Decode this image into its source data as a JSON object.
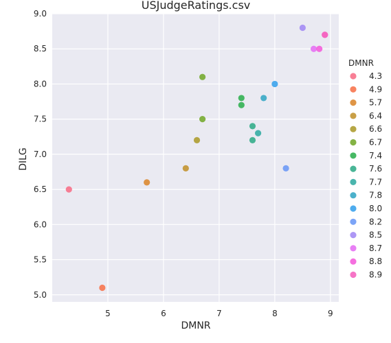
{
  "chart_data": {
    "type": "scatter",
    "title": "USJudgeRatings.csv",
    "xlabel": "DMNR",
    "ylabel": "DILG",
    "xlim": [
      4.0,
      9.15
    ],
    "ylim": [
      4.9,
      9.0
    ],
    "xticks": [
      5,
      6,
      7,
      8,
      9
    ],
    "yticks": [
      5.0,
      5.5,
      6.0,
      6.5,
      7.0,
      7.5,
      8.0,
      8.5,
      9.0
    ],
    "grid": true,
    "legend_position": "right",
    "legend_title": "DMNR",
    "series": [
      {
        "name": "4.3",
        "color": "#f77189",
        "points": [
          [
            4.3,
            6.5
          ]
        ]
      },
      {
        "name": "4.9",
        "color": "#f7754f",
        "points": [
          [
            4.9,
            5.1
          ]
        ]
      },
      {
        "name": "5.7",
        "color": "#dc8932",
        "points": [
          [
            5.7,
            6.6
          ]
        ]
      },
      {
        "name": "6.4",
        "color": "#c39532",
        "points": [
          [
            6.4,
            6.8
          ]
        ]
      },
      {
        "name": "6.6",
        "color": "#ae9d31",
        "points": [
          [
            6.6,
            7.2
          ]
        ]
      },
      {
        "name": "6.7",
        "color": "#77ab31",
        "points": [
          [
            6.7,
            8.1
          ],
          [
            6.7,
            7.5
          ]
        ]
      },
      {
        "name": "7.4",
        "color": "#33b153",
        "points": [
          [
            7.4,
            7.8
          ],
          [
            7.4,
            7.7
          ]
        ]
      },
      {
        "name": "7.6",
        "color": "#35ad8b",
        "points": [
          [
            7.6,
            7.4
          ],
          [
            7.6,
            7.2
          ]
        ]
      },
      {
        "name": "7.7",
        "color": "#36ada4",
        "points": [
          [
            7.7,
            7.3
          ]
        ]
      },
      {
        "name": "7.8",
        "color": "#38a9c5",
        "points": [
          [
            7.8,
            7.8
          ]
        ]
      },
      {
        "name": "8.0",
        "color": "#3ba3ec",
        "points": [
          [
            8.0,
            8.0
          ]
        ]
      },
      {
        "name": "8.2",
        "color": "#6e9af6",
        "points": [
          [
            8.2,
            6.8
          ]
        ]
      },
      {
        "name": "8.5",
        "color": "#a48cf4",
        "points": [
          [
            8.5,
            8.8
          ]
        ]
      },
      {
        "name": "8.7",
        "color": "#e671f4",
        "points": [
          [
            8.7,
            8.5
          ]
        ]
      },
      {
        "name": "8.8",
        "color": "#f45fdb",
        "points": [
          [
            8.8,
            8.5
          ]
        ]
      },
      {
        "name": "8.9",
        "color": "#f565c0",
        "points": [
          [
            8.9,
            8.7
          ],
          [
            8.9,
            8.7
          ]
        ]
      }
    ]
  },
  "colors": {
    "plot_background": "#eaeaf2",
    "grid": "#ffffff"
  }
}
